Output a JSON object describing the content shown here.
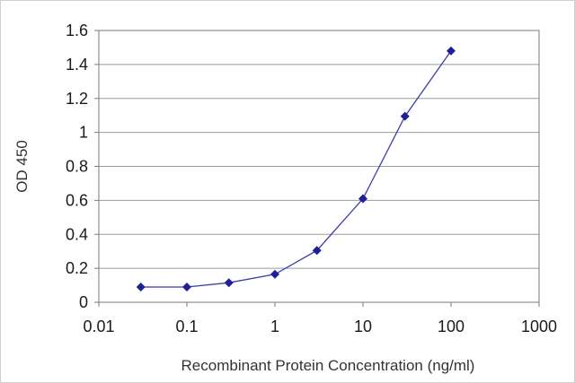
{
  "chart_data": {
    "type": "line",
    "title": "",
    "xlabel": "Recombinant Protein Concentration (ng/ml)",
    "ylabel": "OD 450",
    "x_scale": "log",
    "xlim": [
      0.01,
      1000
    ],
    "ylim": [
      0,
      1.6
    ],
    "x_ticks": [
      "0.01",
      "0.1",
      "1",
      "10",
      "100",
      "1000"
    ],
    "y_ticks": [
      "0",
      "0.2",
      "0.4",
      "0.6",
      "0.8",
      "1",
      "1.2",
      "1.4",
      "1.6"
    ],
    "grid": "horizontal",
    "legend": "none",
    "series": [
      {
        "x": [
          0.03,
          0.1,
          0.3,
          1,
          3,
          10,
          30,
          100
        ],
        "values": [
          0.09,
          0.09,
          0.115,
          0.165,
          0.305,
          0.61,
          1.095,
          1.48
        ]
      }
    ],
    "colors": {
      "series": "#3b3bb0",
      "marker": "#1f1f9a",
      "grid": "#9a9a9a",
      "axis": "#7a7a7a"
    }
  }
}
